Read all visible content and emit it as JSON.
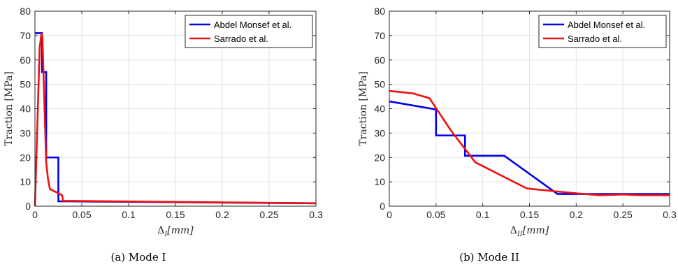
{
  "colors": {
    "series_1": "#0000ee",
    "series_2": "#ee1111",
    "grid": "#e3e3e3",
    "axis": "#262626"
  },
  "chart_data": [
    {
      "type": "line",
      "caption": "(a) Mode I",
      "xlabel_main": "Δ",
      "xlabel_sub": "I",
      "xlabel_unit": "[mm]",
      "ylabel": "Traction [MPa]",
      "xlim": [
        0,
        0.3
      ],
      "ylim": [
        0,
        80
      ],
      "xticks": [
        0,
        0.05,
        0.1,
        0.15,
        0.2,
        0.25,
        0.3
      ],
      "xtick_labels": [
        "0",
        "0.05",
        "0.1",
        "0.15",
        "0.2",
        "0.25",
        "0.3"
      ],
      "yticks": [
        0,
        10,
        20,
        30,
        40,
        50,
        60,
        70,
        80
      ],
      "ytick_labels": [
        "0",
        "10",
        "20",
        "30",
        "40",
        "50",
        "60",
        "70",
        "80"
      ],
      "grid": true,
      "legend_position": "top-right",
      "series": [
        {
          "name": "Abdel Monsef et al.",
          "color": "#0000ee",
          "x": [
            0,
            0.0075,
            0.0075,
            0.012,
            0.012,
            0.025,
            0.025,
            0.3
          ],
          "y": [
            71,
            71,
            55,
            55,
            20,
            20,
            2,
            1.2
          ]
        },
        {
          "name": "Sarrado et al.",
          "color": "#ee1111",
          "x": [
            0,
            0.005,
            0.007,
            0.008,
            0.01,
            0.012,
            0.014,
            0.016,
            0.024,
            0.029,
            0.03,
            0.3
          ],
          "y": [
            0,
            65,
            71,
            69,
            43,
            18,
            11,
            7,
            5.5,
            4.5,
            2.2,
            1.2
          ]
        }
      ]
    },
    {
      "type": "line",
      "caption": "(b) Mode II",
      "xlabel_main": "Δ",
      "xlabel_sub": "II",
      "xlabel_unit": "[mm]",
      "ylabel": "Traction [MPa]",
      "xlim": [
        0,
        0.3
      ],
      "ylim": [
        0,
        80
      ],
      "xticks": [
        0,
        0.05,
        0.1,
        0.15,
        0.2,
        0.25,
        0.3
      ],
      "xtick_labels": [
        "0",
        "0.05",
        "0.1",
        "0.15",
        "0.2",
        "0.25",
        "0.3"
      ],
      "yticks": [
        0,
        10,
        20,
        30,
        40,
        50,
        60,
        70,
        80
      ],
      "ytick_labels": [
        "0",
        "10",
        "20",
        "30",
        "40",
        "50",
        "60",
        "70",
        "80"
      ],
      "grid": true,
      "legend_position": "top-right",
      "series": [
        {
          "name": "Abdel Monsef et al.",
          "color": "#0000ee",
          "x": [
            0,
            0.05,
            0.05,
            0.081,
            0.081,
            0.123,
            0.18,
            0.3
          ],
          "y": [
            43,
            39.7,
            29,
            29,
            20.7,
            20.7,
            5,
            5
          ]
        },
        {
          "name": "Sarrado et al.",
          "color": "#ee1111",
          "x": [
            0,
            0.025,
            0.043,
            0.066,
            0.092,
            0.147,
            0.175,
            0.2,
            0.225,
            0.25,
            0.268,
            0.3
          ],
          "y": [
            47.3,
            46.3,
            44.3,
            31,
            18,
            7.3,
            6.2,
            5.3,
            4.5,
            4.8,
            4.5,
            4.5
          ]
        }
      ]
    }
  ]
}
